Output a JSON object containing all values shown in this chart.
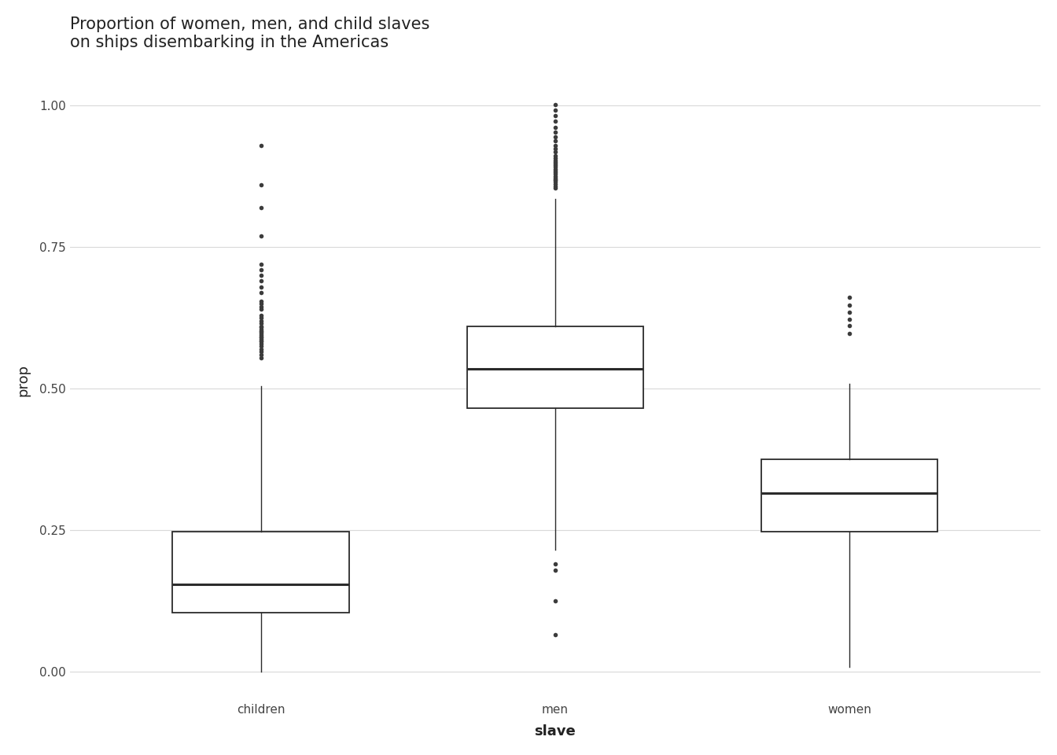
{
  "title": "Proportion of women, men, and child slaves\non ships disembarking in the Americas",
  "xlabel": "slave",
  "ylabel": "prop",
  "categories": [
    "children",
    "men",
    "women"
  ],
  "ylim": [
    -0.05,
    1.08
  ],
  "yticks": [
    0.0,
    0.25,
    0.5,
    0.75,
    1.0
  ],
  "ytick_labels": [
    "0.00",
    "0.25",
    "0.50",
    "0.75",
    "1.00"
  ],
  "background_color": "#ffffff",
  "grid_color": "#d9d9d9",
  "box_color": "#2b2b2b",
  "outlier_color": "#3c3c3c",
  "title_fontsize": 15,
  "label_fontsize": 13,
  "tick_fontsize": 11,
  "box_width": 0.6,
  "boxes": {
    "children": {
      "q1": 0.105,
      "median": 0.155,
      "q3": 0.248,
      "whisker_low": 0.0,
      "whisker_high": 0.505,
      "outliers_y": [
        0.555,
        0.56,
        0.565,
        0.57,
        0.575,
        0.58,
        0.583,
        0.585,
        0.588,
        0.59,
        0.592,
        0.595,
        0.598,
        0.6,
        0.602,
        0.605,
        0.608,
        0.61,
        0.615,
        0.62,
        0.625,
        0.63,
        0.64,
        0.645,
        0.65,
        0.655,
        0.67,
        0.68,
        0.69,
        0.7,
        0.71,
        0.72,
        0.77,
        0.82,
        0.86,
        0.93
      ]
    },
    "men": {
      "q1": 0.465,
      "median": 0.535,
      "q3": 0.61,
      "whisker_low": 0.215,
      "whisker_high": 0.835,
      "outliers_y": [
        0.18,
        0.19,
        0.125,
        0.065,
        0.855,
        0.858,
        0.862,
        0.865,
        0.868,
        0.87,
        0.873,
        0.876,
        0.879,
        0.882,
        0.885,
        0.888,
        0.892,
        0.895,
        0.898,
        0.9,
        0.903,
        0.907,
        0.912,
        0.918,
        0.924,
        0.93,
        0.938,
        0.945,
        0.953,
        0.962,
        0.972,
        0.982,
        0.992,
        1.002
      ]
    },
    "women": {
      "q1": 0.248,
      "median": 0.315,
      "q3": 0.375,
      "whisker_low": 0.008,
      "whisker_high": 0.508,
      "outliers_y": [
        0.598,
        0.612,
        0.622,
        0.635,
        0.648,
        0.662
      ]
    }
  }
}
